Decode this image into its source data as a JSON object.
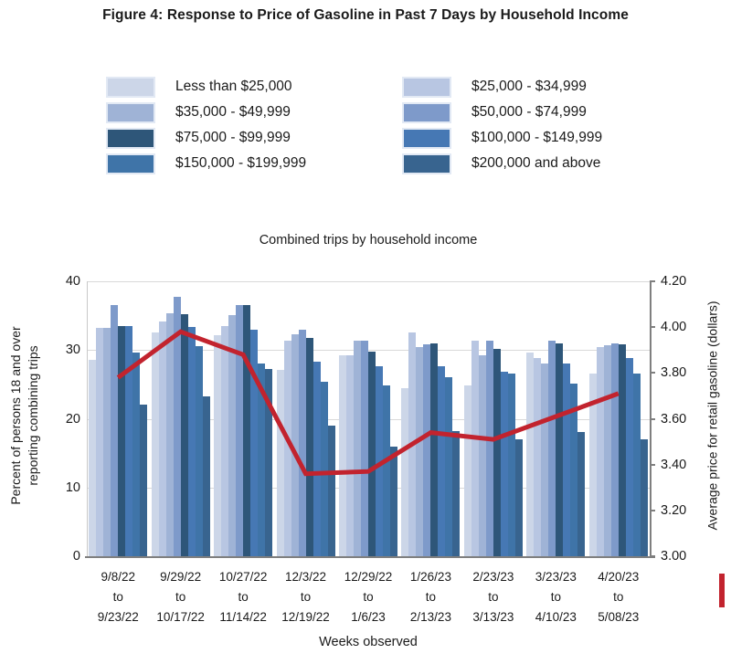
{
  "figure_title": "Figure 4: Response to Price of Gasoline in Past 7 Days by Household Income",
  "chart_data": {
    "type": "bar",
    "title": "Combined trips by household income",
    "xlabel": "Weeks observed",
    "ylabel_left": "Percent of persons 18 and over reporting combining trips",
    "ylabel_left_lines": [
      "Percent of persons 18 and over",
      "reporting combining trips"
    ],
    "ylabel_right": "Average price for retail gasoline (dollars)",
    "ylim_left": [
      0,
      40
    ],
    "yticks_left": [
      0,
      10,
      20,
      30,
      40
    ],
    "ylim_right": [
      3.0,
      4.2
    ],
    "yticks_right": [
      "3.00",
      "3.20",
      "3.40",
      "3.60",
      "3.80",
      "4.00",
      "4.20"
    ],
    "grid": true,
    "legend_position": "top",
    "categories": [
      [
        "9/8/22",
        "to",
        "9/23/22"
      ],
      [
        "9/29/22",
        "to",
        "10/17/22"
      ],
      [
        "10/27/22",
        "to",
        "11/14/22"
      ],
      [
        "12/3/22",
        "to",
        "12/19/22"
      ],
      [
        "12/29/22",
        "to",
        "1/6/23"
      ],
      [
        "1/26/23",
        "to",
        "2/13/23"
      ],
      [
        "2/23/23",
        "to",
        "3/13/23"
      ],
      [
        "3/23/23",
        "to",
        "4/10/23"
      ],
      [
        "4/20/23",
        "to",
        "5/08/23"
      ]
    ],
    "series": [
      {
        "name": "Less than $25,000",
        "color": "#ccd6e8",
        "values": [
          28.6,
          32.5,
          32.2,
          27.1,
          29.3,
          24.5,
          24.8,
          29.7,
          26.6
        ]
      },
      {
        "name": "$25,000 - $34,999",
        "color": "#b8c6e2",
        "values": [
          33.2,
          34.1,
          33.5,
          31.4,
          29.2,
          32.5,
          31.4,
          28.8,
          30.4
        ]
      },
      {
        "name": "$35,000 - $49,999",
        "color": "#9fb3d6",
        "values": [
          33.2,
          35.4,
          35.1,
          32.3,
          31.4,
          30.4,
          29.2,
          28.1,
          30.7
        ]
      },
      {
        "name": "$50,000 - $74,999",
        "color": "#7e9aca",
        "values": [
          36.5,
          37.7,
          36.5,
          32.9,
          31.4,
          30.8,
          31.3,
          31.4,
          31.0
        ]
      },
      {
        "name": "$75,000 - $99,999",
        "color": "#2e5679",
        "values": [
          33.5,
          35.2,
          36.5,
          31.8,
          29.8,
          31.0,
          30.1,
          31.0,
          30.8
        ]
      },
      {
        "name": "$100,000 - $149,999",
        "color": "#4678b4",
        "values": [
          33.5,
          33.4,
          33.0,
          28.3,
          27.7,
          27.7,
          26.9,
          28.0,
          28.9
        ]
      },
      {
        "name": "$150,000 - $199,999",
        "color": "#3f74a8",
        "values": [
          29.6,
          30.6,
          28.0,
          25.4,
          24.9,
          26.0,
          26.6,
          25.1,
          26.6
        ]
      },
      {
        "name": "$200,000 and above",
        "color": "#38648f",
        "values": [
          22.0,
          23.3,
          27.3,
          19.0,
          15.9,
          18.2,
          17.0,
          18.1,
          17.0
        ]
      }
    ],
    "line_series": {
      "name": "Average price for retail gasoline (dollars)",
      "color": "#c2232e",
      "axis": "right",
      "values": [
        3.78,
        3.98,
        3.88,
        3.36,
        3.37,
        3.54,
        3.51,
        3.61,
        3.71
      ]
    }
  }
}
